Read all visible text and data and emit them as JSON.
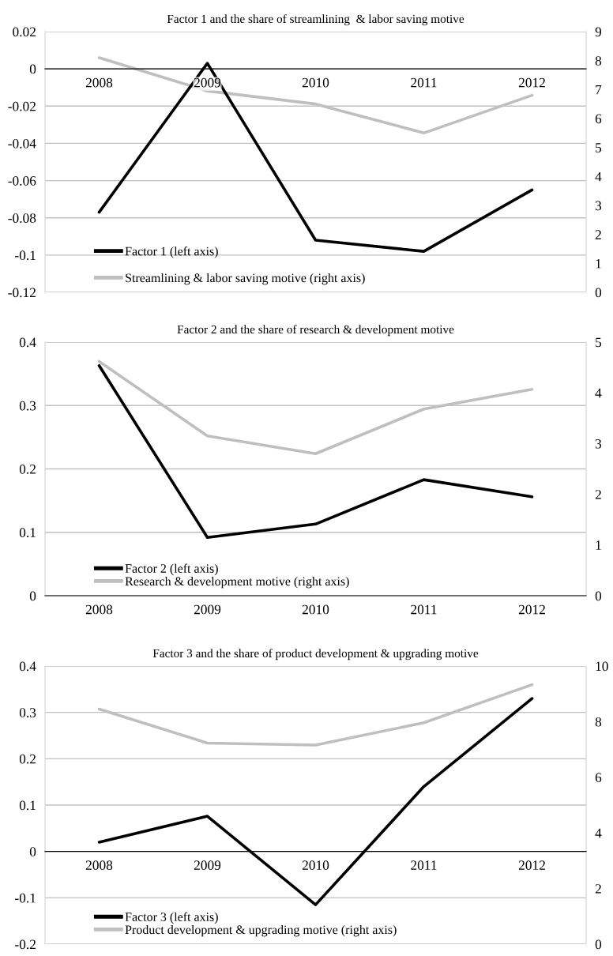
{
  "chart_data": [
    {
      "type": "line",
      "title": "Factor 1 and the share of streamlining  & labor saving motive",
      "categories": [
        "2008",
        "2009",
        "2010",
        "2011",
        "2012"
      ],
      "series": [
        {
          "name": "Factor 1 (left axis)",
          "color": "#000000",
          "values": [
            -0.077,
            0.003,
            -0.092,
            -0.098,
            -0.065
          ]
        },
        {
          "name": "Streamlining & labor saving motive (right axis)",
          "color": "#bfbfbf",
          "axis": "y2",
          "values": [
            8.1,
            6.95,
            6.5,
            5.5,
            6.8
          ]
        }
      ],
      "ylim": [
        -0.12,
        0.02
      ],
      "yticks": [
        -0.12,
        -0.1,
        -0.08,
        -0.06,
        -0.04,
        -0.02,
        0,
        0.02
      ],
      "y2lim": [
        0,
        9
      ],
      "y2ticks": [
        0,
        1,
        2,
        3,
        4,
        5,
        6,
        7,
        8,
        9
      ],
      "grid": "y",
      "legend": "bottom left"
    },
    {
      "type": "line",
      "title": "Factor 2 and the share of research & development motive",
      "categories": [
        "2008",
        "2009",
        "2010",
        "2011",
        "2012"
      ],
      "series": [
        {
          "name": "Factor 2 (left axis)",
          "color": "#000000",
          "values": [
            0.363,
            0.092,
            0.113,
            0.183,
            0.156
          ]
        },
        {
          "name": "Research & development motive (right axis)",
          "color": "#bfbfbf",
          "axis": "y2",
          "values": [
            4.62,
            3.15,
            2.8,
            3.68,
            4.07
          ]
        }
      ],
      "ylim": [
        0,
        0.4
      ],
      "yticks": [
        0,
        0.1,
        0.2,
        0.3,
        0.4
      ],
      "y2lim": [
        0,
        5
      ],
      "y2ticks": [
        0,
        1,
        2,
        3,
        4,
        5
      ],
      "grid": "y",
      "legend": "bottom left"
    },
    {
      "type": "line",
      "title": "Factor 3 and the share of product development & upgrading motive",
      "categories": [
        "2008",
        "2009",
        "2010",
        "2011",
        "2012"
      ],
      "series": [
        {
          "name": "Factor 3 (left axis)",
          "color": "#000000",
          "values": [
            0.02,
            0.076,
            -0.115,
            0.14,
            0.33
          ]
        },
        {
          "name": "Product development & upgrading motive (right axis)",
          "color": "#bfbfbf",
          "axis": "y2",
          "values": [
            8.45,
            7.23,
            7.16,
            7.96,
            9.33
          ]
        }
      ],
      "ylim": [
        -0.2,
        0.4
      ],
      "yticks": [
        -0.2,
        -0.1,
        0,
        0.1,
        0.2,
        0.3,
        0.4
      ],
      "y2lim": [
        0,
        10
      ],
      "y2ticks": [
        0,
        2,
        4,
        6,
        8,
        10
      ],
      "grid": "y",
      "legend": "bottom left"
    }
  ]
}
